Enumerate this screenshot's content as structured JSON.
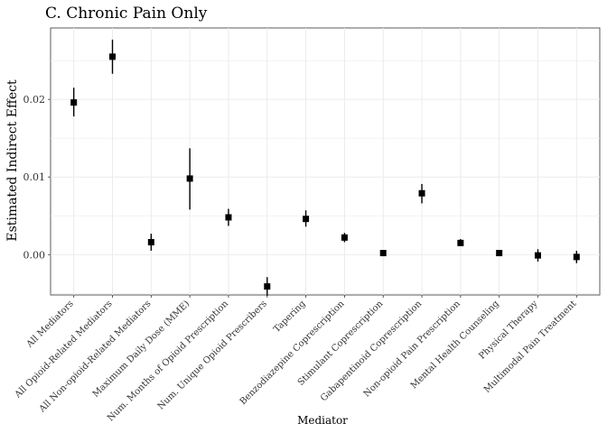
{
  "chart_data": {
    "type": "scatter",
    "title": "C. Chronic Pain Only",
    "xlabel": "Mediator",
    "ylabel": "Estimated Indirect Effect",
    "ylim": [
      -0.0052,
      0.0292
    ],
    "yticks": [
      0.0,
      0.01,
      0.02
    ],
    "ytick_labels": [
      "0.00",
      "0.01",
      "0.02"
    ],
    "grid": true,
    "legend": "none",
    "categories": [
      "All Mediators",
      "All Opioid-Related Mediators",
      "All Non-opioid-Related Mediators",
      "Maximum Daily Dose (MME)",
      "Num. Months of Opioid Prescription",
      "Num. Unique Opioid Prescribers",
      "Tapering",
      "Benzodiazepine Coprescription",
      "Stimulant Coprescription",
      "Gabapentinoid Coprescription",
      "Non-opioid Pain Prescription",
      "Mental Health Counseling",
      "Physical Therapy",
      "Multimodal Pain Treatment"
    ],
    "series": [
      {
        "values": [
          0.0196,
          0.0255,
          0.0016,
          0.0098,
          0.0048,
          -0.0041,
          0.0046,
          0.0022,
          0.0002,
          0.0079,
          0.0015,
          0.0002,
          -0.0001,
          -0.0003
        ],
        "lower": [
          0.0178,
          0.0233,
          0.0005,
          0.0058,
          0.0037,
          -0.0053,
          0.0036,
          0.0016,
          0.0,
          0.0066,
          0.0011,
          0.0,
          -0.0009,
          -0.0011
        ],
        "upper": [
          0.0215,
          0.0277,
          0.0027,
          0.0137,
          0.0059,
          -0.0029,
          0.0057,
          0.0028,
          0.0004,
          0.0091,
          0.002,
          0.0004,
          0.0007,
          0.0005
        ]
      }
    ]
  }
}
